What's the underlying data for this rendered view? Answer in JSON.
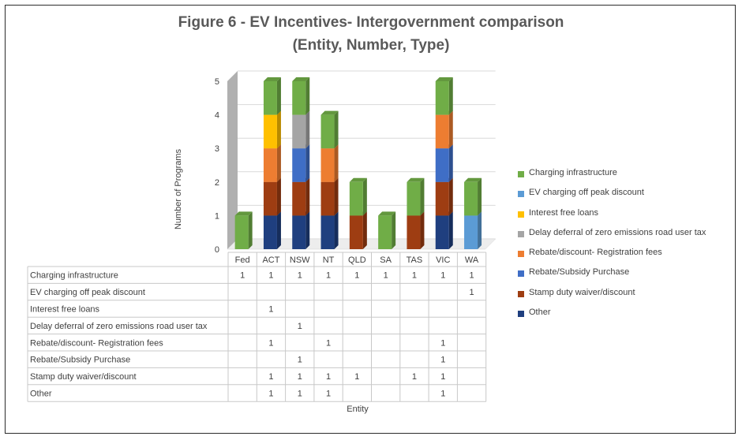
{
  "title_lines": [
    "Figure 6 - EV Incentives- Intergovernment comparison",
    "(Entity, Number, Type)"
  ],
  "chart_data": {
    "type": "bar",
    "stacked": true,
    "title": "Figure 6 - EV Incentives- Intergovernment comparison (Entity, Number, Type)",
    "xlabel": "Entity",
    "ylabel": "Number of Programs",
    "ylim": [
      0,
      5
    ],
    "yticks": [
      "0",
      "1",
      "2",
      "3",
      "4",
      "5"
    ],
    "grid": true,
    "legend_position": "right",
    "categories": [
      "Fed",
      "ACT",
      "NSW",
      "NT",
      "QLD",
      "SA",
      "TAS",
      "VIC",
      "WA"
    ],
    "series": [
      {
        "name": "Other",
        "color": "#1f3f7f",
        "values": [
          null,
          1,
          1,
          1,
          null,
          null,
          null,
          1,
          null
        ]
      },
      {
        "name": "Stamp duty waiver/discount",
        "color": "#9e3d12",
        "values": [
          null,
          1,
          1,
          1,
          1,
          null,
          1,
          1,
          null
        ]
      },
      {
        "name": "Rebate/Subsidy Purchase",
        "color": "#3f6ec6",
        "values": [
          null,
          null,
          1,
          null,
          null,
          null,
          null,
          1,
          null
        ]
      },
      {
        "name": "Rebate/discount- Registration fees",
        "color": "#ed7d31",
        "values": [
          null,
          1,
          null,
          1,
          null,
          null,
          null,
          1,
          null
        ]
      },
      {
        "name": "Delay deferral of zero emissions road user tax",
        "color": "#a5a5a5",
        "values": [
          null,
          null,
          1,
          null,
          null,
          null,
          null,
          null,
          null
        ]
      },
      {
        "name": "Interest free loans",
        "color": "#ffc000",
        "values": [
          null,
          1,
          null,
          null,
          null,
          null,
          null,
          null,
          null
        ]
      },
      {
        "name": "EV charging off peak discount",
        "color": "#5b9bd5",
        "values": [
          null,
          null,
          null,
          null,
          null,
          null,
          null,
          null,
          1
        ]
      },
      {
        "name": "Charging infrastructure",
        "color": "#70ad47",
        "values": [
          1,
          1,
          1,
          1,
          1,
          1,
          1,
          1,
          1
        ]
      }
    ],
    "table_rows": [
      {
        "label": "Charging infrastructure",
        "values": [
          "1",
          "1",
          "1",
          "1",
          "1",
          "1",
          "1",
          "1",
          "1"
        ]
      },
      {
        "label": "EV charging off peak discount",
        "values": [
          "",
          "",
          "",
          "",
          "",
          "",
          "",
          "",
          "1"
        ]
      },
      {
        "label": "Interest free loans",
        "values": [
          "",
          "1",
          "",
          "",
          "",
          "",
          "",
          "",
          ""
        ]
      },
      {
        "label": "Delay deferral of zero emissions road user tax",
        "values": [
          "",
          "",
          "1",
          "",
          "",
          "",
          "",
          "",
          ""
        ]
      },
      {
        "label": "Rebate/discount- Registration fees",
        "values": [
          "",
          "1",
          "",
          "1",
          "",
          "",
          "",
          "1",
          ""
        ]
      },
      {
        "label": "Rebate/Subsidy Purchase",
        "values": [
          "",
          "",
          "1",
          "",
          "",
          "",
          "",
          "1",
          ""
        ]
      },
      {
        "label": "Stamp duty waiver/discount",
        "values": [
          "",
          "1",
          "1",
          "1",
          "1",
          "",
          "1",
          "1",
          ""
        ]
      },
      {
        "label": "Other",
        "values": [
          "",
          "1",
          "1",
          "1",
          "",
          "",
          "",
          "1",
          ""
        ]
      }
    ]
  }
}
